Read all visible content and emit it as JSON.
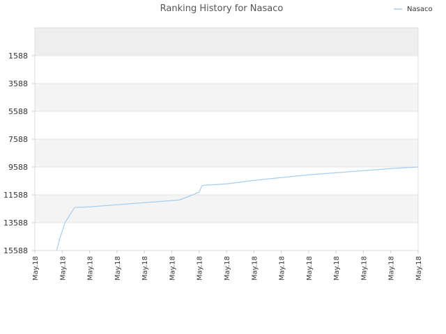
{
  "chart_data": {
    "type": "line",
    "title": "Ranking History for Nasaco",
    "legend_position": "top-right",
    "y_inverted": true,
    "ylim": [
      15588,
      -412
    ],
    "yticks": [
      1588,
      3588,
      5588,
      7588,
      9588,
      11588,
      13588,
      15588
    ],
    "x_tick_labels": [
      "May.18",
      "May.18",
      "May.18",
      "May.18",
      "May.18",
      "May.18",
      "May.18",
      "May.18",
      "May.18",
      "May.18",
      "May.18",
      "May.18",
      "May.18",
      "May.18",
      "May.18"
    ],
    "grid": true,
    "band_colors": [
      "#eeeeee",
      "#ffffff",
      "#f4f4f4"
    ],
    "series": [
      {
        "name": "Nasaco",
        "color": "#a8cdee",
        "x": [
          0.8,
          0.9,
          1.1,
          1.45,
          2.0,
          3.0,
          4.0,
          5.0,
          5.3,
          6.0,
          6.1,
          6.2,
          7.0,
          8.0,
          9.0,
          10.0,
          11.0,
          12.0,
          13.0,
          14.0
        ],
        "y": [
          15588,
          14800,
          13588,
          12500,
          12450,
          12300,
          12150,
          12000,
          11950,
          11400,
          10950,
          10900,
          10800,
          10550,
          10350,
          10150,
          10000,
          9850,
          9700,
          9588
        ]
      }
    ]
  }
}
